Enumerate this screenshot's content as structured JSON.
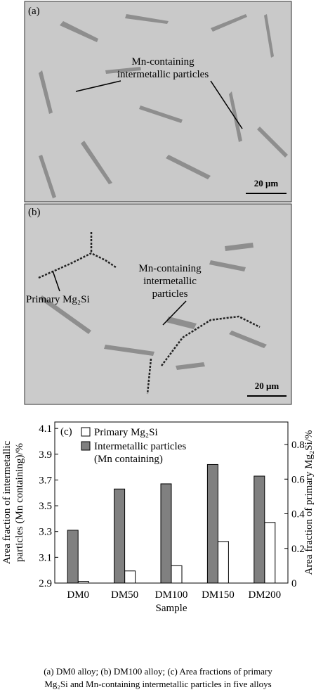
{
  "panels": [
    {
      "label": "(a)",
      "annotation": [
        "Mn-containing",
        "intermetallic particles"
      ],
      "scale_bar": "20 μm"
    },
    {
      "label": "(b)",
      "annotation_primary": "Primary Mg₂Si",
      "annotation": [
        "Mn-containing",
        "intermetallic",
        "particles"
      ],
      "scale_bar": "20 μm"
    }
  ],
  "chart_data": {
    "type": "bar",
    "panel_label": "(c)",
    "categories": [
      "DM0",
      "DM50",
      "DM100",
      "DM150",
      "DM200"
    ],
    "x_label": "Sample",
    "y_label": [
      "Area fraction of intermetallic",
      "particles (Mn containing)/%"
    ],
    "y2_label": "Area fraction of primary Mg₂Si/%",
    "series": [
      {
        "name": "Primary Mg₂Si",
        "color": "#ffffff",
        "axis": "y2",
        "values": [
          0.01,
          0.07,
          0.1,
          0.24,
          0.35
        ]
      },
      {
        "name": "Intermetallic particles (Mn containing)",
        "color": "#808080",
        "values": [
          3.31,
          3.63,
          3.67,
          3.82,
          3.73
        ]
      }
    ],
    "ylim": [
      2.9,
      4.15
    ],
    "yticks": [
      2.9,
      3.1,
      3.3,
      3.5,
      3.7,
      3.9,
      4.1
    ],
    "y2lim": [
      0,
      0.93
    ],
    "y2ticks": [
      0,
      0.2,
      0.4,
      0.6,
      0.8
    ],
    "legend": "upper-left"
  },
  "caption": [
    "(a) DM0 alloy; (b) DM100 alloy; (c) Area fractions of primary",
    "Mg₂Si and Mn-containing intermetallic particles in five alloys"
  ]
}
